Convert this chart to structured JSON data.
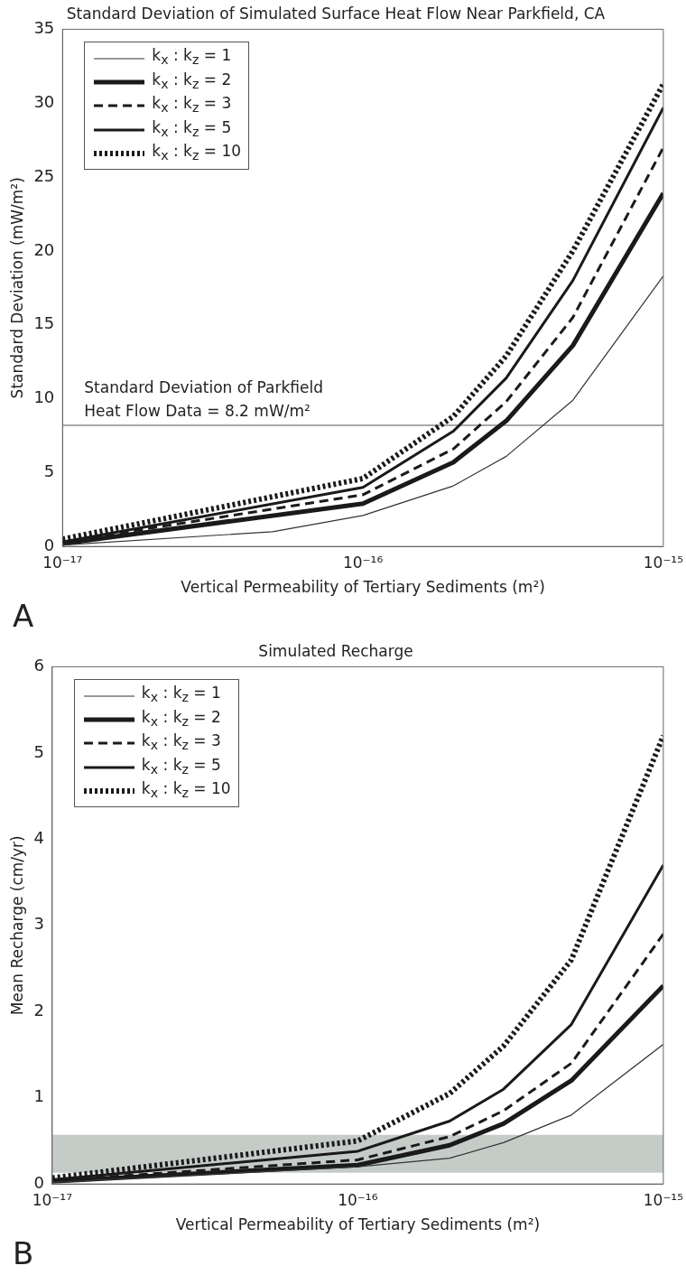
{
  "chart_data": [
    {
      "type": "line",
      "title": "Standard Deviation of Simulated Surface Heat Flow Near Parkfield, CA",
      "xlabel": "Vertical Permeability of Tertiary Sediments (m²)",
      "ylabel": "Standard Deviation (mW/m²)",
      "log": "x",
      "xlim": [
        1e-17,
        1e-15
      ],
      "xticks": [
        {
          "value": 1e-17,
          "label": "10⁻¹⁷"
        },
        {
          "value": 1e-16,
          "label": "10⁻¹⁶"
        },
        {
          "value": 1e-15,
          "label": "10⁻¹⁵"
        }
      ],
      "ylim": [
        0,
        35
      ],
      "yticks": [
        0,
        5,
        10,
        15,
        20,
        25,
        30,
        35
      ],
      "grid": false,
      "legend": "top left",
      "marker": "none",
      "annotations": [
        "A"
      ],
      "ref_lines": [
        {
          "axis": "y",
          "value": 8.2,
          "label": "Standard Deviation of Parkfield\nHeat Flow Data = 8.2 mW/m²",
          "color": "#555555"
        }
      ],
      "series": [
        {
          "name": "k$_{x}$ : k$_{z}$ = 1",
          "color": "#333333",
          "line_style": "solid",
          "x": [
            1e-17,
            5e-17,
            1e-16,
            2e-16,
            3e-16,
            5e-16,
            1e-15
          ],
          "values": [
            0.1,
            1.0,
            2.1,
            4.1,
            6.1,
            9.9,
            18.3
          ]
        },
        {
          "name": "k$_{x}$ : k$_{z}$ = 2",
          "color": "#1a1a1a",
          "line_style": "solid",
          "x": [
            1e-17,
            1e-16,
            2e-16,
            3e-16,
            5e-16,
            1e-15
          ],
          "values": [
            0.2,
            2.9,
            5.7,
            8.5,
            13.6,
            23.9
          ]
        },
        {
          "name": "k$_{x}$ : k$_{z}$ = 3",
          "color": "#1a1a1a",
          "line_style": "dashed",
          "x": [
            1e-17,
            1e-16,
            2e-16,
            3e-16,
            5e-16,
            1e-15
          ],
          "values": [
            0.3,
            3.5,
            6.6,
            9.8,
            15.5,
            27.0
          ]
        },
        {
          "name": "k$_{x}$ : k$_{z}$ = 5",
          "color": "#1a1a1a",
          "line_style": "solid",
          "x": [
            1e-17,
            1e-16,
            2e-16,
            3e-16,
            5e-16,
            1e-15
          ],
          "values": [
            0.3,
            4.0,
            7.8,
            11.4,
            18.0,
            29.7
          ]
        },
        {
          "name": "k$_{x}$ : k$_{z}$ = 10",
          "color": "#1a1a1a",
          "line_style": "dotted",
          "x": [
            1e-17,
            1e-16,
            2e-16,
            3e-16,
            5e-16,
            1e-15
          ],
          "values": [
            0.5,
            4.6,
            8.8,
            12.9,
            20.0,
            31.3
          ]
        }
      ]
    },
    {
      "type": "line",
      "title": "Simulated Recharge",
      "xlabel": "Vertical Permeability of Tertiary Sediments (m²)",
      "ylabel": "Mean Recharge (cm/yr)",
      "log": "x",
      "xlim": [
        1e-17,
        1e-15
      ],
      "xticks": [
        {
          "value": 1e-17,
          "label": "10⁻¹⁷"
        },
        {
          "value": 1e-16,
          "label": "10⁻¹⁶"
        },
        {
          "value": 1e-15,
          "label": "10⁻¹⁵"
        }
      ],
      "ylim": [
        0,
        6
      ],
      "yticks": [
        0,
        1,
        2,
        3,
        4,
        5,
        6
      ],
      "grid": false,
      "legend": "top left",
      "marker": "none",
      "annotations": [
        "B"
      ],
      "bands": [
        {
          "axis": "y",
          "from": 0.13,
          "to": 0.57,
          "color": "#c5ccc8"
        }
      ],
      "series": [
        {
          "name": "k$_{x}$ : k$_{z}$ = 1",
          "color": "#333333",
          "line_style": "solid",
          "x": [
            1e-17,
            1e-16,
            2e-16,
            3e-16,
            5e-16,
            1e-15
          ],
          "values": [
            0.02,
            0.2,
            0.3,
            0.48,
            0.8,
            1.62
          ]
        },
        {
          "name": "k$_{x}$ : k$_{z}$ = 2",
          "color": "#1a1a1a",
          "line_style": "solid",
          "x": [
            1e-17,
            1e-16,
            2e-16,
            3e-16,
            5e-16,
            1e-15
          ],
          "values": [
            0.03,
            0.22,
            0.45,
            0.7,
            1.2,
            2.3
          ]
        },
        {
          "name": "k$_{x}$ : k$_{z}$ = 3",
          "color": "#1a1a1a",
          "line_style": "dashed",
          "x": [
            1e-17,
            1e-16,
            2e-16,
            3e-16,
            5e-16,
            1e-15
          ],
          "values": [
            0.04,
            0.28,
            0.55,
            0.85,
            1.4,
            2.9
          ]
        },
        {
          "name": "k$_{x}$ : k$_{z}$ = 5",
          "color": "#1a1a1a",
          "line_style": "solid",
          "x": [
            1e-17,
            1e-16,
            2e-16,
            3e-16,
            5e-16,
            1e-15
          ],
          "values": [
            0.05,
            0.38,
            0.73,
            1.1,
            1.85,
            3.7
          ]
        },
        {
          "name": "k$_{x}$ : k$_{z}$ = 10",
          "color": "#1a1a1a",
          "line_style": "dotted",
          "x": [
            1e-17,
            1e-16,
            2e-16,
            3e-16,
            5e-16,
            1e-15
          ],
          "values": [
            0.07,
            0.5,
            1.05,
            1.6,
            2.6,
            5.2
          ]
        }
      ]
    }
  ]
}
